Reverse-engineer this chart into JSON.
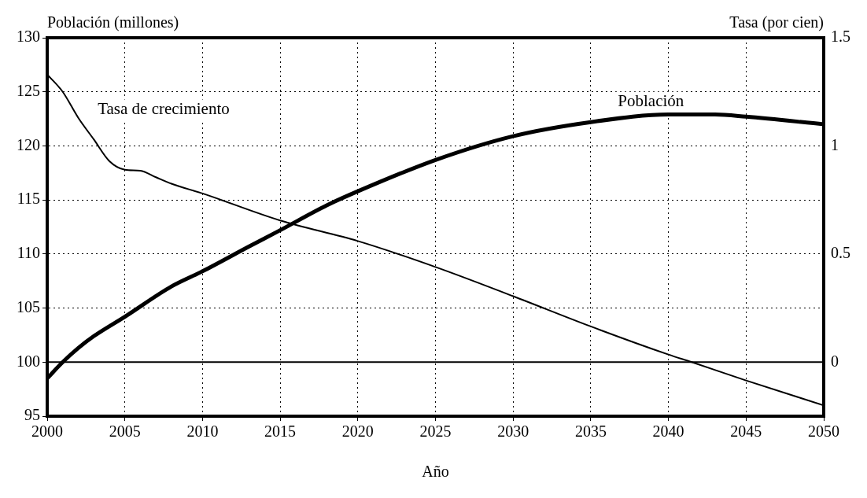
{
  "chart_data": {
    "type": "line",
    "ylabel": "Población (millones)",
    "y2label": "Tasa (por cien)",
    "xlabel": "Año",
    "xlim": [
      2000,
      2050
    ],
    "xticks": [
      2000,
      2005,
      2010,
      2015,
      2020,
      2025,
      2030,
      2035,
      2040,
      2045,
      2050
    ],
    "ylim": [
      95,
      130
    ],
    "yticks": [
      95,
      100,
      105,
      110,
      115,
      120,
      125,
      130
    ],
    "y2lim": [
      -0.25,
      1.5
    ],
    "y2ticks": [
      0,
      0.5,
      1,
      1.5
    ],
    "grid": true,
    "legend": false,
    "marker": "none",
    "line_style": "solid",
    "ref_lines": [
      {
        "axis": "y2",
        "value": 0,
        "color": "#000000",
        "line_style": "solid"
      }
    ],
    "series": [
      {
        "name": "Población",
        "color": "#000000",
        "axis": "y",
        "x": [
          2000,
          2001,
          2002,
          2003,
          2005,
          2008,
          2010,
          2013,
          2015,
          2018,
          2020,
          2025,
          2030,
          2035,
          2040,
          2043,
          2045,
          2050
        ],
        "values": [
          98.5,
          100,
          101.3,
          102.4,
          104.2,
          107,
          108.4,
          110.7,
          112.2,
          114.5,
          115.8,
          118.7,
          120.9,
          122.2,
          122.9,
          122.9,
          122.7,
          122
        ]
      },
      {
        "name": "Tasa de crecimiento",
        "color": "#000000",
        "axis": "y2",
        "x": [
          2000,
          2001,
          2002,
          2003,
          2004,
          2005,
          2006,
          2007,
          2008,
          2010,
          2015,
          2020,
          2025,
          2030,
          2035,
          2040,
          2041.5,
          2045,
          2050
        ],
        "values": [
          1.33,
          1.25,
          1.13,
          1.03,
          0.93,
          0.89,
          0.885,
          0.855,
          0.825,
          0.78,
          0.655,
          0.56,
          0.44,
          0.305,
          0.165,
          0.035,
          0,
          -0.085,
          -0.2
        ]
      }
    ]
  }
}
